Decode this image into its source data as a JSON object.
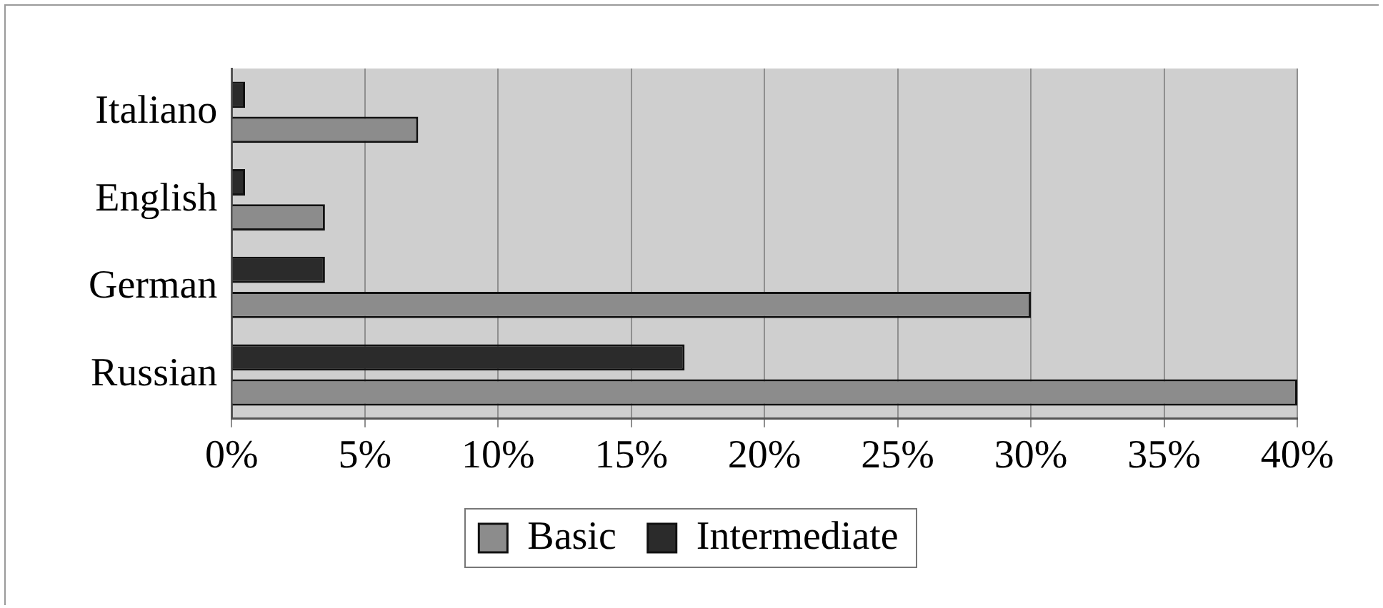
{
  "chart_data": {
    "type": "bar",
    "orientation": "horizontal",
    "categories": [
      "Italiano",
      "English",
      "German",
      "Russian"
    ],
    "series": [
      {
        "name": "Basic",
        "color": "#8c8c8c",
        "values": [
          7,
          3.5,
          30,
          40
        ]
      },
      {
        "name": "Intermediate",
        "color": "#2b2b2b",
        "values": [
          0.5,
          0.5,
          3.5,
          17
        ]
      }
    ],
    "xlim": [
      0,
      40
    ],
    "xticks": [
      {
        "value": 0,
        "label": "0%"
      },
      {
        "value": 5,
        "label": "5%"
      },
      {
        "value": 10,
        "label": "10%"
      },
      {
        "value": 15,
        "label": "15%"
      },
      {
        "value": 20,
        "label": "20%"
      },
      {
        "value": 25,
        "label": "25%"
      },
      {
        "value": 30,
        "label": "30%"
      },
      {
        "value": 35,
        "label": "35%"
      },
      {
        "value": 40,
        "label": "40%"
      }
    ],
    "grid": "x",
    "legend": "bottom"
  }
}
